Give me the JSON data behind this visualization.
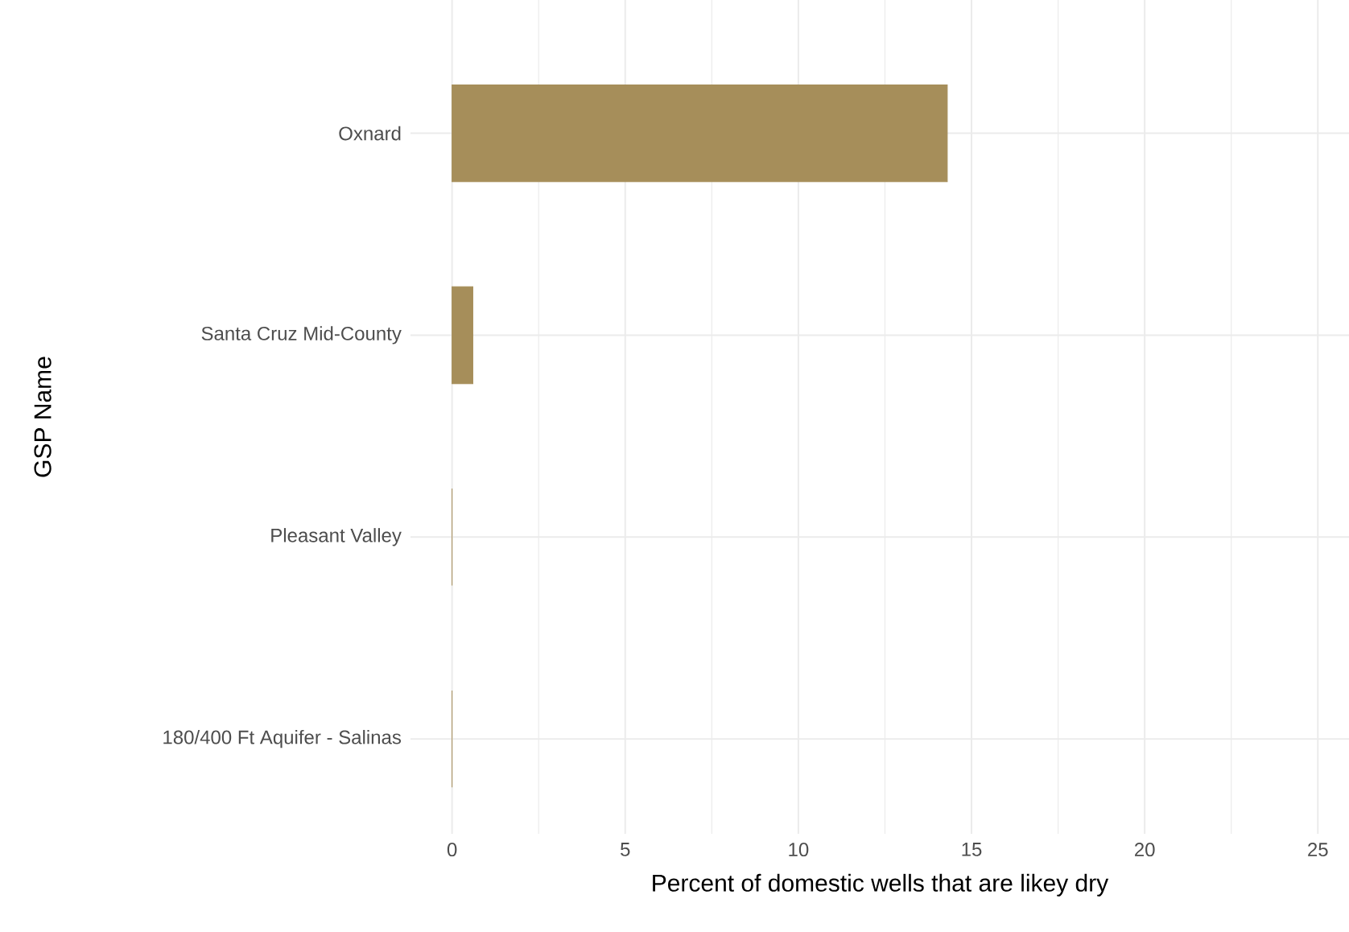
{
  "chart_data": {
    "type": "bar",
    "orientation": "horizontal",
    "xlabel": "Percent of domestic wells that are likey dry",
    "ylabel": "GSP Name",
    "categories": [
      "Oxnard",
      "Santa Cruz Mid-County",
      "Pleasant Valley",
      "180/400 Ft Aquifer - Salinas"
    ],
    "values": [
      14.3,
      0.6,
      0,
      0
    ],
    "color": "#a68e5a",
    "xlim": [
      -1.2,
      25.9
    ],
    "xticks": [
      0,
      5,
      10,
      15,
      20,
      25
    ],
    "grid": true
  }
}
